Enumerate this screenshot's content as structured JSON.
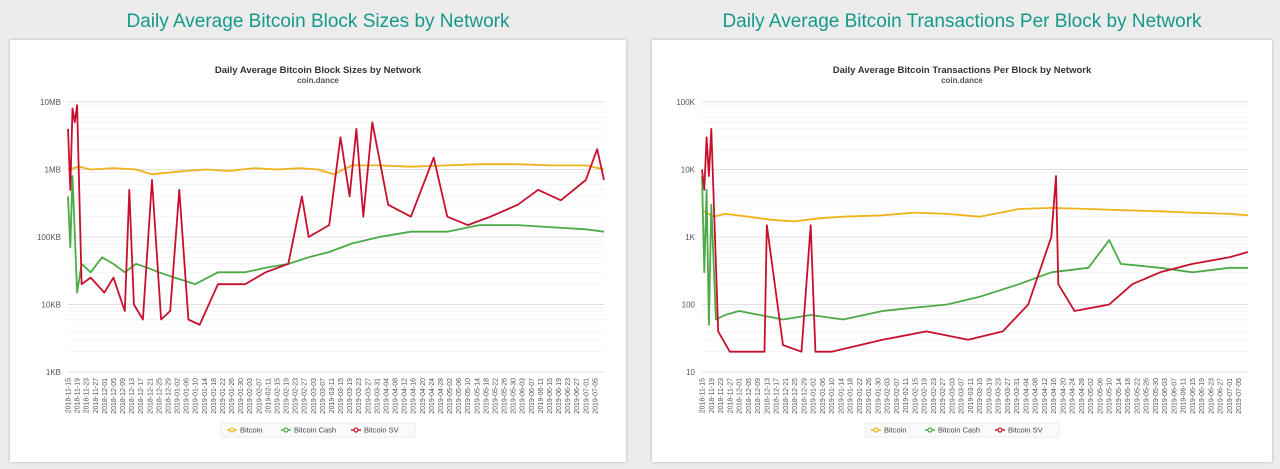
{
  "headings": {
    "left": "Daily Average Bitcoin Block Sizes by Network",
    "right": "Daily Average Bitcoin Transactions Per Block by Network"
  },
  "colors": {
    "Bitcoin": "#f0b21a",
    "Bitcoin Cash": "#4cab47",
    "Bitcoin SV": "#c8102e"
  },
  "chart_data": [
    {
      "type": "line",
      "title": "Daily Average Bitcoin Block Sizes by Network",
      "subtitle": "coin.dance",
      "y_scale": "log",
      "ylim_bytes": [
        1000,
        10000000
      ],
      "y_ticks": [
        {
          "value": 1000,
          "label": "1KB"
        },
        {
          "value": 10000,
          "label": "10KB"
        },
        {
          "value": 100000,
          "label": "100KB"
        },
        {
          "value": 1000000,
          "label": "1MB"
        },
        {
          "value": 10000000,
          "label": "10MB"
        }
      ],
      "x_range": [
        "2018-11-15",
        "2019-07-09"
      ],
      "x_tick_start": "2018-11-15",
      "x_tick_end": "2019-07-05",
      "x_tick_step_days": 4,
      "legend": [
        "Bitcoin",
        "Bitcoin Cash",
        "Bitcoin SV"
      ],
      "legend_position": "bottom",
      "series": [
        {
          "name": "Bitcoin",
          "x": [
            "2018-11-15",
            "2018-11-20",
            "2018-11-25",
            "2018-12-05",
            "2018-12-15",
            "2018-12-22",
            "2019-01-05",
            "2019-01-15",
            "2019-01-25",
            "2019-02-05",
            "2019-02-15",
            "2019-02-25",
            "2019-03-05",
            "2019-03-12",
            "2019-03-20",
            "2019-04-01",
            "2019-04-15",
            "2019-05-01",
            "2019-05-15",
            "2019-06-01",
            "2019-06-15",
            "2019-07-01",
            "2019-07-09"
          ],
          "values": [
            1000000,
            1100000,
            1000000,
            1050000,
            1000000,
            850000,
            950000,
            1000000,
            950000,
            1050000,
            1000000,
            1050000,
            1000000,
            850000,
            1150000,
            1150000,
            1100000,
            1150000,
            1200000,
            1200000,
            1150000,
            1150000,
            1000000
          ]
        },
        {
          "name": "Bitcoin Cash",
          "x": [
            "2018-11-15",
            "2018-11-16",
            "2018-11-17",
            "2018-11-19",
            "2018-11-21",
            "2018-11-25",
            "2018-11-30",
            "2018-12-05",
            "2018-12-10",
            "2018-12-15",
            "2018-12-20",
            "2018-12-25",
            "2019-01-01",
            "2019-01-10",
            "2019-01-20",
            "2019-02-01",
            "2019-02-10",
            "2019-02-20",
            "2019-03-01",
            "2019-03-10",
            "2019-03-20",
            "2019-04-01",
            "2019-04-15",
            "2019-05-01",
            "2019-05-15",
            "2019-06-01",
            "2019-06-15",
            "2019-07-01",
            "2019-07-09"
          ],
          "values": [
            400000,
            70000,
            800000,
            15000,
            40000,
            30000,
            50000,
            40000,
            30000,
            40000,
            35000,
            30000,
            25000,
            20000,
            30000,
            30000,
            35000,
            40000,
            50000,
            60000,
            80000,
            100000,
            120000,
            120000,
            150000,
            150000,
            140000,
            130000,
            120000
          ]
        },
        {
          "name": "Bitcoin SV",
          "x": [
            "2018-11-15",
            "2018-11-16",
            "2018-11-17",
            "2018-11-18",
            "2018-11-19",
            "2018-11-21",
            "2018-11-25",
            "2018-12-01",
            "2018-12-05",
            "2018-12-10",
            "2018-12-12",
            "2018-12-14",
            "2018-12-18",
            "2018-12-22",
            "2018-12-26",
            "2018-12-30",
            "2019-01-03",
            "2019-01-07",
            "2019-01-12",
            "2019-01-20",
            "2019-02-01",
            "2019-02-10",
            "2019-02-20",
            "2019-02-26",
            "2019-03-01",
            "2019-03-10",
            "2019-03-15",
            "2019-03-19",
            "2019-03-22",
            "2019-03-25",
            "2019-03-29",
            "2019-04-05",
            "2019-04-15",
            "2019-04-25",
            "2019-05-01",
            "2019-05-10",
            "2019-05-20",
            "2019-06-01",
            "2019-06-10",
            "2019-06-20",
            "2019-07-01",
            "2019-07-06",
            "2019-07-09"
          ],
          "values": [
            4000000,
            500000,
            8000000,
            5000000,
            9000000,
            20000,
            25000,
            15000,
            25000,
            8000,
            500000,
            10000,
            6000,
            700000,
            6000,
            8000,
            500000,
            6000,
            5000,
            20000,
            20000,
            30000,
            40000,
            400000,
            100000,
            150000,
            3000000,
            400000,
            4000000,
            200000,
            5000000,
            300000,
            200000,
            1500000,
            200000,
            150000,
            200000,
            300000,
            500000,
            350000,
            700000,
            2000000,
            700000
          ]
        }
      ]
    },
    {
      "type": "line",
      "title": "Daily Average Bitcoin Transactions Per Block by Network",
      "subtitle": "coin.dance",
      "y_scale": "log",
      "ylim": [
        10,
        100000
      ],
      "y_ticks": [
        {
          "value": 10,
          "label": "10"
        },
        {
          "value": 100,
          "label": "100"
        },
        {
          "value": 1000,
          "label": "1K"
        },
        {
          "value": 10000,
          "label": "10K"
        },
        {
          "value": 100000,
          "label": "100K"
        }
      ],
      "x_range": [
        "2018-11-15",
        "2019-07-09"
      ],
      "x_tick_start": "2018-11-15",
      "x_tick_end": "2019-07-05",
      "x_tick_step_days": 4,
      "legend": [
        "Bitcoin",
        "Bitcoin Cash",
        "Bitcoin SV"
      ],
      "legend_position": "bottom",
      "series": [
        {
          "name": "Bitcoin",
          "x": [
            "2018-11-15",
            "2018-11-20",
            "2018-11-25",
            "2018-12-05",
            "2018-12-15",
            "2018-12-25",
            "2019-01-05",
            "2019-01-15",
            "2019-02-01",
            "2019-02-15",
            "2019-03-01",
            "2019-03-15",
            "2019-04-01",
            "2019-04-15",
            "2019-05-01",
            "2019-05-15",
            "2019-06-01",
            "2019-06-15",
            "2019-07-01",
            "2019-07-09"
          ],
          "values": [
            2500,
            2000,
            2200,
            2000,
            1800,
            1700,
            1900,
            2000,
            2100,
            2300,
            2200,
            2000,
            2600,
            2700,
            2600,
            2500,
            2400,
            2300,
            2200,
            2100
          ]
        },
        {
          "name": "Bitcoin Cash",
          "x": [
            "2018-11-15",
            "2018-11-16",
            "2018-11-17",
            "2018-11-18",
            "2018-11-19",
            "2018-11-21",
            "2018-11-25",
            "2018-12-01",
            "2018-12-10",
            "2018-12-20",
            "2019-01-01",
            "2019-01-15",
            "2019-02-01",
            "2019-02-15",
            "2019-03-01",
            "2019-03-15",
            "2019-04-01",
            "2019-04-15",
            "2019-05-01",
            "2019-05-10",
            "2019-05-15",
            "2019-06-01",
            "2019-06-15",
            "2019-07-01",
            "2019-07-09"
          ],
          "values": [
            8000,
            300,
            5000,
            50,
            3000,
            60,
            70,
            80,
            70,
            60,
            70,
            60,
            80,
            90,
            100,
            130,
            200,
            300,
            350,
            900,
            400,
            350,
            300,
            350,
            350
          ]
        },
        {
          "name": "Bitcoin SV",
          "x": [
            "2018-11-15",
            "2018-11-16",
            "2018-11-17",
            "2018-11-18",
            "2018-11-19",
            "2018-11-22",
            "2018-11-27",
            "2018-12-05",
            "2018-12-12",
            "2018-12-13",
            "2018-12-20",
            "2018-12-28",
            "2019-01-01",
            "2019-01-03",
            "2019-01-10",
            "2019-02-01",
            "2019-02-20",
            "2019-03-10",
            "2019-03-25",
            "2019-04-05",
            "2019-04-15",
            "2019-04-17",
            "2019-04-18",
            "2019-04-25",
            "2019-05-10",
            "2019-05-20",
            "2019-06-01",
            "2019-06-15",
            "2019-07-01",
            "2019-07-09"
          ],
          "values": [
            10000,
            5000,
            30000,
            8000,
            40000,
            40,
            20,
            20,
            20,
            1500,
            25,
            20,
            1500,
            20,
            20,
            30,
            40,
            30,
            40,
            100,
            1000,
            8000,
            200,
            80,
            100,
            200,
            300,
            400,
            500,
            600
          ]
        }
      ]
    }
  ]
}
